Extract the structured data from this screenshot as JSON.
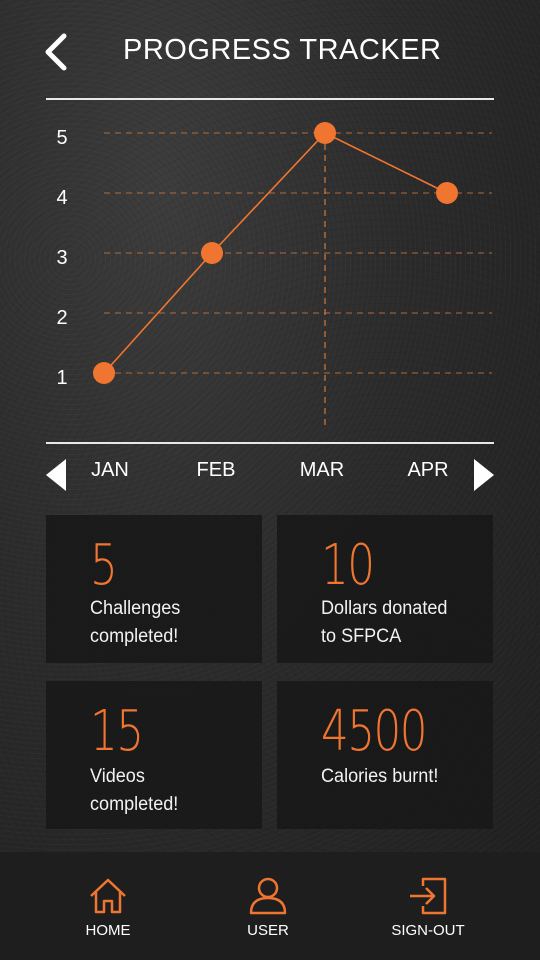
{
  "header": {
    "title": "PROGRESS TRACKER",
    "back_icon": "chevron-left-icon"
  },
  "chart_data": {
    "type": "line",
    "categories": [
      "JAN",
      "FEB",
      "MAR",
      "APR"
    ],
    "values": [
      1.2,
      3.2,
      5.2,
      4.2
    ],
    "ytick_labels": [
      "1",
      "2",
      "3",
      "4",
      "5"
    ],
    "ylim": [
      1,
      5
    ],
    "grid": true,
    "highlight_category": "MAR",
    "colors": {
      "line": "#f07530",
      "grid": "#d07a3c"
    }
  },
  "month_nav": {
    "prev_icon": "triangle-left-icon",
    "next_icon": "triangle-right-icon",
    "months": [
      "JAN",
      "FEB",
      "MAR",
      "APR"
    ]
  },
  "stats": [
    {
      "value": "5",
      "line1": "Challenges",
      "line2": "completed!"
    },
    {
      "value": "10",
      "line1": "Dollars donated",
      "line2": "to SFPCA"
    },
    {
      "value": "15",
      "line1": "Videos",
      "line2": "completed!"
    },
    {
      "value": "4500",
      "line1": "Calories burnt!",
      "line2": ""
    }
  ],
  "bottom_nav": [
    {
      "label": "HOME",
      "icon": "home-icon"
    },
    {
      "label": "USER",
      "icon": "user-icon"
    },
    {
      "label": "SIGN-OUT",
      "icon": "sign-out-icon"
    }
  ],
  "colors": {
    "accent": "#f07530"
  }
}
